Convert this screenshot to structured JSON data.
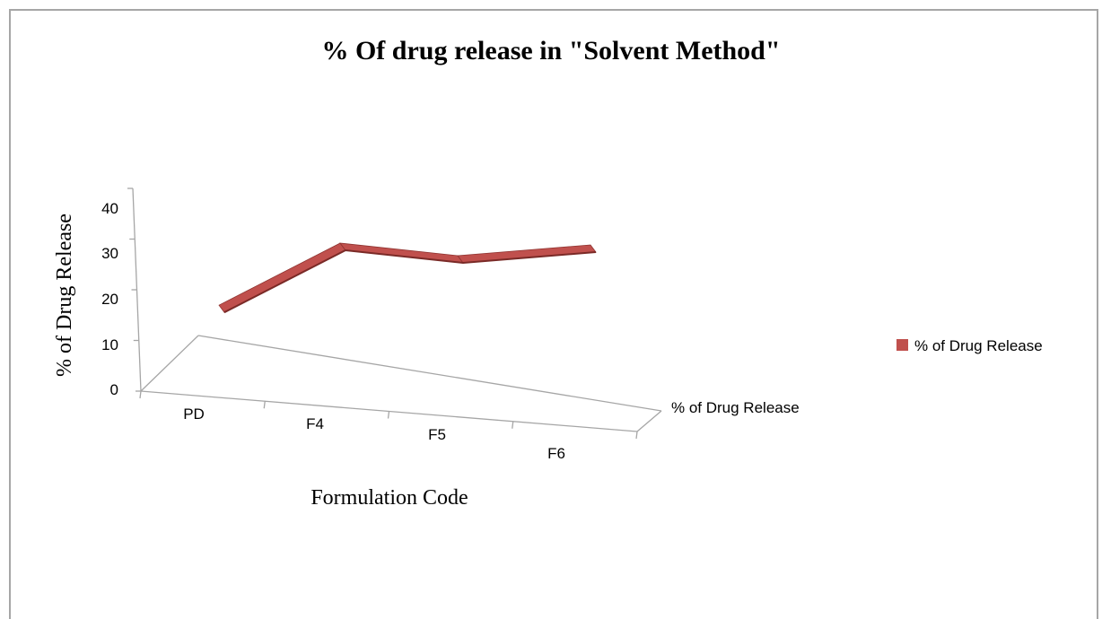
{
  "chart_data": {
    "type": "line",
    "title": "% Of drug release in \"Solvent Method\"",
    "xlabel": "Formulation  Code",
    "ylabel": "% of Drug  Release",
    "categories": [
      "PD",
      "F4",
      "F5",
      "F6"
    ],
    "depth_label": "% of Drug Release",
    "series": [
      {
        "name": "% of Drug Release",
        "values": [
          9,
          30,
          30,
          35
        ],
        "color": "#c0504d"
      }
    ],
    "ylim": [
      0,
      40
    ],
    "yticks": [
      0,
      10,
      20,
      30,
      40
    ],
    "grid": false,
    "legend": "right",
    "projection": "3d"
  }
}
